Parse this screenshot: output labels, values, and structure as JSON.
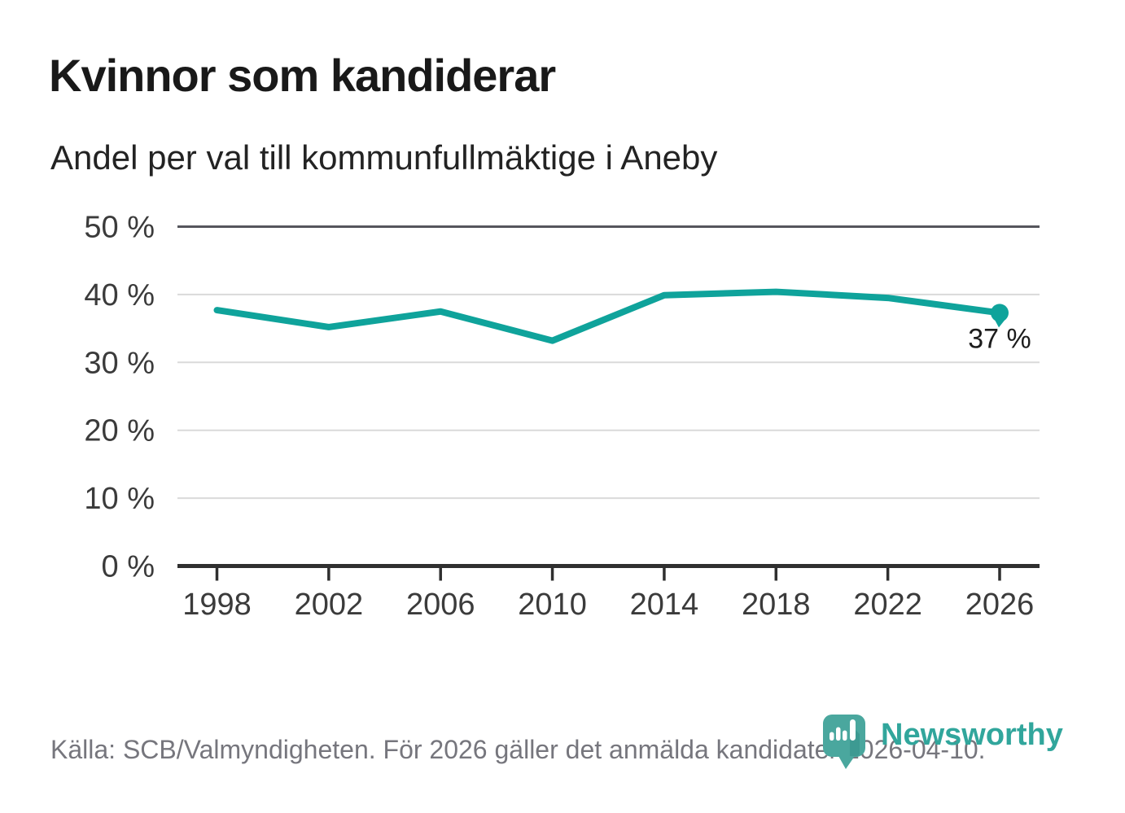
{
  "header": {
    "title": "Kvinnor som kandiderar",
    "subtitle": "Andel per val till kommunfullmäktige i Aneby"
  },
  "chart_data": {
    "type": "line",
    "title": "Kvinnor som kandiderar",
    "subtitle": "Andel per val till kommunfullmäktige i Aneby",
    "x": [
      1998,
      2002,
      2006,
      2010,
      2014,
      2018,
      2022,
      2026
    ],
    "x_tick_labels": [
      "1998",
      "2002",
      "2006",
      "2010",
      "2014",
      "2018",
      "2022",
      "2026"
    ],
    "values": [
      37.7,
      35.2,
      37.5,
      33.2,
      39.9,
      40.4,
      39.5,
      37.3
    ],
    "ylabel": "%",
    "ylim": [
      0,
      50
    ],
    "y_ticks": [
      {
        "value": 50,
        "label": "50 %"
      },
      {
        "value": 40,
        "label": "40 %"
      },
      {
        "value": 30,
        "label": "30 %"
      },
      {
        "value": 20,
        "label": "20 %"
      },
      {
        "value": 10,
        "label": "10 %"
      },
      {
        "value": 0,
        "label": "0 %"
      }
    ],
    "grid": true,
    "legend": "none",
    "end_label": "37 %",
    "line_color": "#0fa39b",
    "grid_color": "#dadada",
    "top_grid_color": "#55565c",
    "axis_color": "#2f2f2f"
  },
  "footer": {
    "source": "Källa: SCB/Valmyndigheten. För 2026 gäller det anmälda kandidater 2026-04-10.",
    "brand": "Newsworthy",
    "brand_color": "#31a69c",
    "logo_color": "#4aa79e",
    "logo_shadow_color": "#2e8c83"
  }
}
